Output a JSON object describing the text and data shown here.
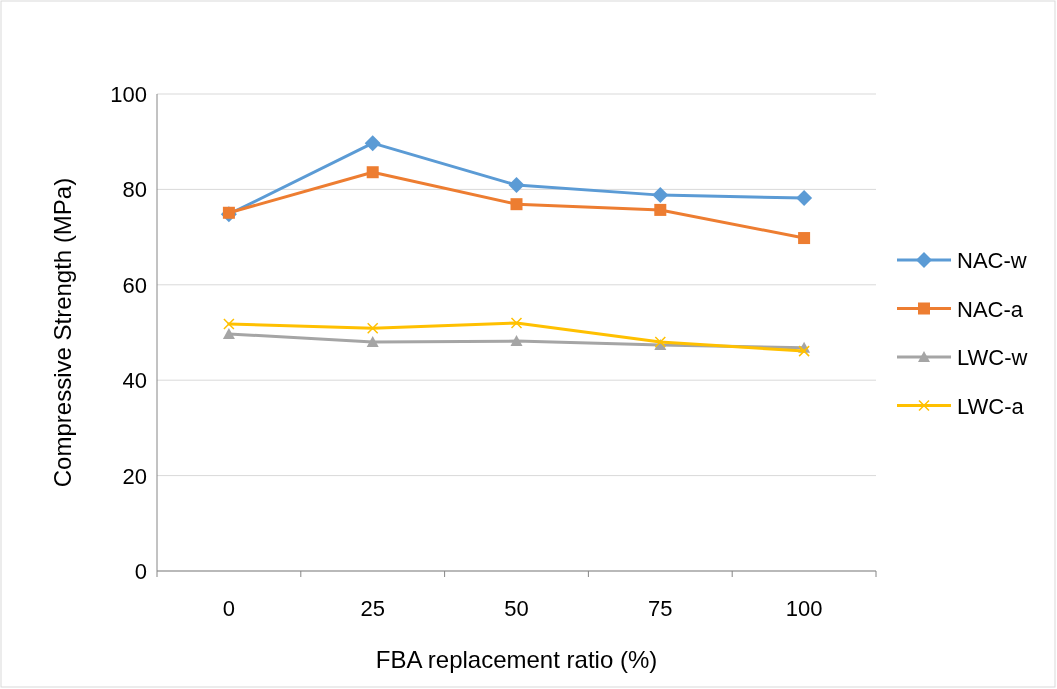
{
  "chart_data": {
    "type": "line",
    "xlabel": "FBA replacement ratio (%)",
    "ylabel": "Compressive Strength (MPa)",
    "categories": [
      "0",
      "25",
      "50",
      "75",
      "100"
    ],
    "series": [
      {
        "name": "NAC-w",
        "color": "#5b9bd5",
        "marker": "diamond",
        "values": [
          74.8,
          89.7,
          80.9,
          78.8,
          78.2
        ]
      },
      {
        "name": "NAC-a",
        "color": "#ed7d31",
        "marker": "square",
        "values": [
          75.1,
          83.6,
          76.9,
          75.7,
          69.8
        ]
      },
      {
        "name": "LWC-w",
        "color": "#a5a5a5",
        "marker": "triangle",
        "values": [
          49.7,
          48.0,
          48.2,
          47.4,
          46.8
        ]
      },
      {
        "name": "LWC-a",
        "color": "#ffc000",
        "marker": "cross",
        "values": [
          51.8,
          50.9,
          52.0,
          48.0,
          46.1
        ]
      }
    ],
    "ylim": [
      0,
      100
    ],
    "yticks": [
      0,
      20,
      40,
      60,
      80,
      100
    ],
    "grid": "y",
    "legend": "right"
  }
}
